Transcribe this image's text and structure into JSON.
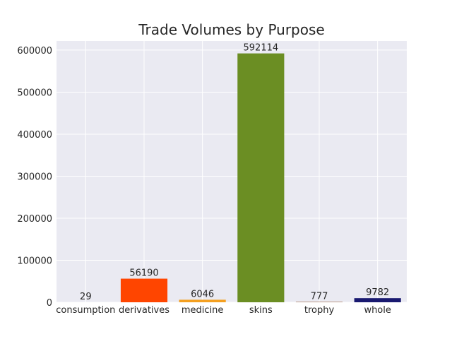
{
  "chart_data": {
    "type": "bar",
    "title": "Trade Volumes by Purpose",
    "xlabel": "",
    "ylabel": "",
    "categories": [
      "consumption",
      "derivatives",
      "medicine",
      "skins",
      "trophy",
      "whole"
    ],
    "values": [
      29,
      56190,
      6046,
      592114,
      777,
      9782
    ],
    "colors": [
      "#808080",
      "#ff4500",
      "#f4a020",
      "#6b8e23",
      "#8b4513",
      "#191970"
    ],
    "ylim": [
      0,
      621720
    ],
    "yticks": [
      0,
      100000,
      200000,
      300000,
      400000,
      500000,
      600000
    ],
    "grid": true,
    "background": "#eaeaf2"
  }
}
